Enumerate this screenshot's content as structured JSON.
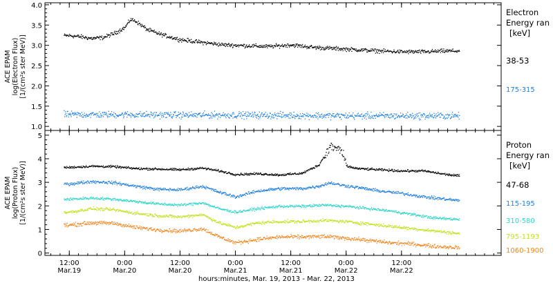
{
  "chart_data": [
    {
      "type": "scatter",
      "title": "",
      "ylabel_lines": [
        "ACE EPAM",
        "log(Electron Flux)",
        "[1/(cm²s ster MeV)]"
      ],
      "ylim": [
        0.9,
        4.05
      ],
      "yticks": [
        1.0,
        1.5,
        2.0,
        2.5,
        3.0,
        3.5,
        4.0
      ],
      "ytick_labels": [
        "1.0",
        "1.5",
        "2.0",
        "2.5",
        "3.0",
        "3.5",
        "4.0"
      ],
      "legend_title_lines": [
        "Electron",
        "Energy ran",
        "[keV]"
      ],
      "series": [
        {
          "name": "38-53",
          "color": "#000000",
          "x": [
            0.0,
            0.1,
            0.2,
            0.3,
            0.4,
            0.5,
            0.55,
            0.6,
            0.65,
            0.7,
            0.8,
            0.9,
            1.0,
            1.2,
            1.4,
            1.6,
            1.8,
            2.0,
            2.2,
            2.4,
            2.6,
            2.8,
            3.0,
            3.2,
            3.4,
            3.5
          ],
          "y": [
            3.25,
            3.22,
            3.18,
            3.2,
            3.3,
            3.45,
            3.65,
            3.6,
            3.5,
            3.4,
            3.3,
            3.22,
            3.15,
            3.08,
            3.02,
            3.0,
            2.98,
            3.02,
            2.96,
            2.93,
            2.9,
            2.87,
            2.85,
            2.85,
            2.87,
            2.87
          ]
        },
        {
          "name": "175-315",
          "color": "#1e7ee0",
          "x": [
            0.0,
            0.5,
            1.0,
            1.5,
            2.0,
            2.5,
            3.0,
            3.5
          ],
          "y": [
            1.3,
            1.3,
            1.29,
            1.29,
            1.28,
            1.27,
            1.27,
            1.27
          ]
        }
      ]
    },
    {
      "type": "scatter",
      "title": "",
      "ylabel_lines": [
        "ACE EPAM",
        "log(Proton Flux)",
        "[1/(cm²s ster MeV)]"
      ],
      "ylim": [
        -0.1,
        5.2
      ],
      "yticks": [
        0,
        1,
        2,
        3,
        4,
        5
      ],
      "ytick_labels": [
        "0",
        "1",
        "2",
        "3",
        "4",
        "5"
      ],
      "legend_title_lines": [
        "Proton",
        "Energy ran",
        "[keV]"
      ],
      "series": [
        {
          "name": "47-68",
          "color": "#000000",
          "x": [
            0.0,
            0.2,
            0.4,
            0.6,
            0.8,
            1.0,
            1.2,
            1.35,
            1.5,
            1.7,
            1.9,
            2.1,
            2.25,
            2.35,
            2.45,
            2.5,
            2.6,
            2.8,
            3.0,
            3.2,
            3.4,
            3.5
          ],
          "y": [
            3.65,
            3.7,
            3.68,
            3.6,
            3.58,
            3.55,
            3.62,
            3.5,
            3.35,
            3.38,
            3.33,
            3.4,
            3.75,
            4.5,
            4.4,
            3.7,
            3.6,
            3.55,
            3.5,
            3.5,
            3.35,
            3.3
          ]
        },
        {
          "name": "115-195",
          "color": "#1e7ee0",
          "x": [
            0.0,
            0.2,
            0.4,
            0.6,
            0.8,
            1.0,
            1.2,
            1.35,
            1.5,
            1.7,
            1.9,
            2.1,
            2.25,
            2.35,
            2.45,
            2.6,
            2.8,
            3.0,
            3.2,
            3.4,
            3.5
          ],
          "y": [
            2.95,
            3.05,
            3.0,
            2.85,
            2.72,
            2.7,
            2.85,
            2.6,
            2.4,
            2.65,
            2.75,
            2.75,
            2.85,
            3.0,
            2.9,
            2.8,
            2.65,
            2.55,
            2.4,
            2.3,
            2.25
          ]
        },
        {
          "name": "310-580",
          "color": "#2fd6c8",
          "x": [
            0.0,
            0.2,
            0.4,
            0.6,
            0.8,
            1.0,
            1.2,
            1.35,
            1.5,
            1.7,
            1.9,
            2.1,
            2.3,
            2.5,
            2.7,
            2.9,
            3.1,
            3.3,
            3.5
          ],
          "y": [
            2.3,
            2.35,
            2.3,
            2.2,
            2.1,
            2.05,
            2.15,
            1.9,
            1.75,
            1.9,
            2.0,
            2.0,
            2.05,
            2.0,
            1.9,
            1.8,
            1.65,
            1.5,
            1.45
          ]
        },
        {
          "name": "795-1193",
          "color": "#c4e020",
          "x": [
            0.0,
            0.2,
            0.4,
            0.6,
            0.8,
            1.0,
            1.2,
            1.35,
            1.5,
            1.7,
            1.9,
            2.1,
            2.3,
            2.5,
            2.7,
            2.9,
            3.1,
            3.3,
            3.5
          ],
          "y": [
            1.75,
            1.9,
            1.85,
            1.7,
            1.6,
            1.55,
            1.65,
            1.3,
            1.1,
            1.3,
            1.35,
            1.35,
            1.4,
            1.35,
            1.25,
            1.15,
            1.05,
            0.95,
            0.85
          ]
        },
        {
          "name": "1060-1900",
          "color": "#f0841c",
          "x": [
            0.0,
            0.2,
            0.4,
            0.6,
            0.8,
            1.0,
            1.2,
            1.35,
            1.5,
            1.7,
            1.9,
            2.1,
            2.3,
            2.5,
            2.7,
            2.9,
            3.1,
            3.3,
            3.5
          ],
          "y": [
            1.2,
            1.3,
            1.28,
            1.1,
            1.0,
            0.95,
            1.05,
            0.7,
            0.45,
            0.6,
            0.7,
            0.7,
            0.72,
            0.65,
            0.55,
            0.45,
            0.4,
            0.3,
            0.25
          ]
        }
      ]
    }
  ],
  "x_axis": {
    "xlim": [
      -0.22,
      3.9
    ],
    "xlabel": "hours:minutes, Mar. 19, 2013 - Mar. 22, 2013",
    "major_ticks": [
      {
        "t": 0.0,
        "line1": "12:00",
        "line2": "Mar.19"
      },
      {
        "t": 0.5,
        "line1": "0:00",
        "line2": "Mar.20"
      },
      {
        "t": 1.0,
        "line1": "12:00",
        "line2": "Mar.20"
      },
      {
        "t": 1.5,
        "line1": "0:00",
        "line2": "Mar.21"
      },
      {
        "t": 2.0,
        "line1": "12:00",
        "line2": "Mar.21"
      },
      {
        "t": 2.5,
        "line1": "0:00",
        "line2": "Mar.22"
      },
      {
        "t": 3.0,
        "line1": "12:00",
        "line2": "Mar.22"
      }
    ]
  }
}
